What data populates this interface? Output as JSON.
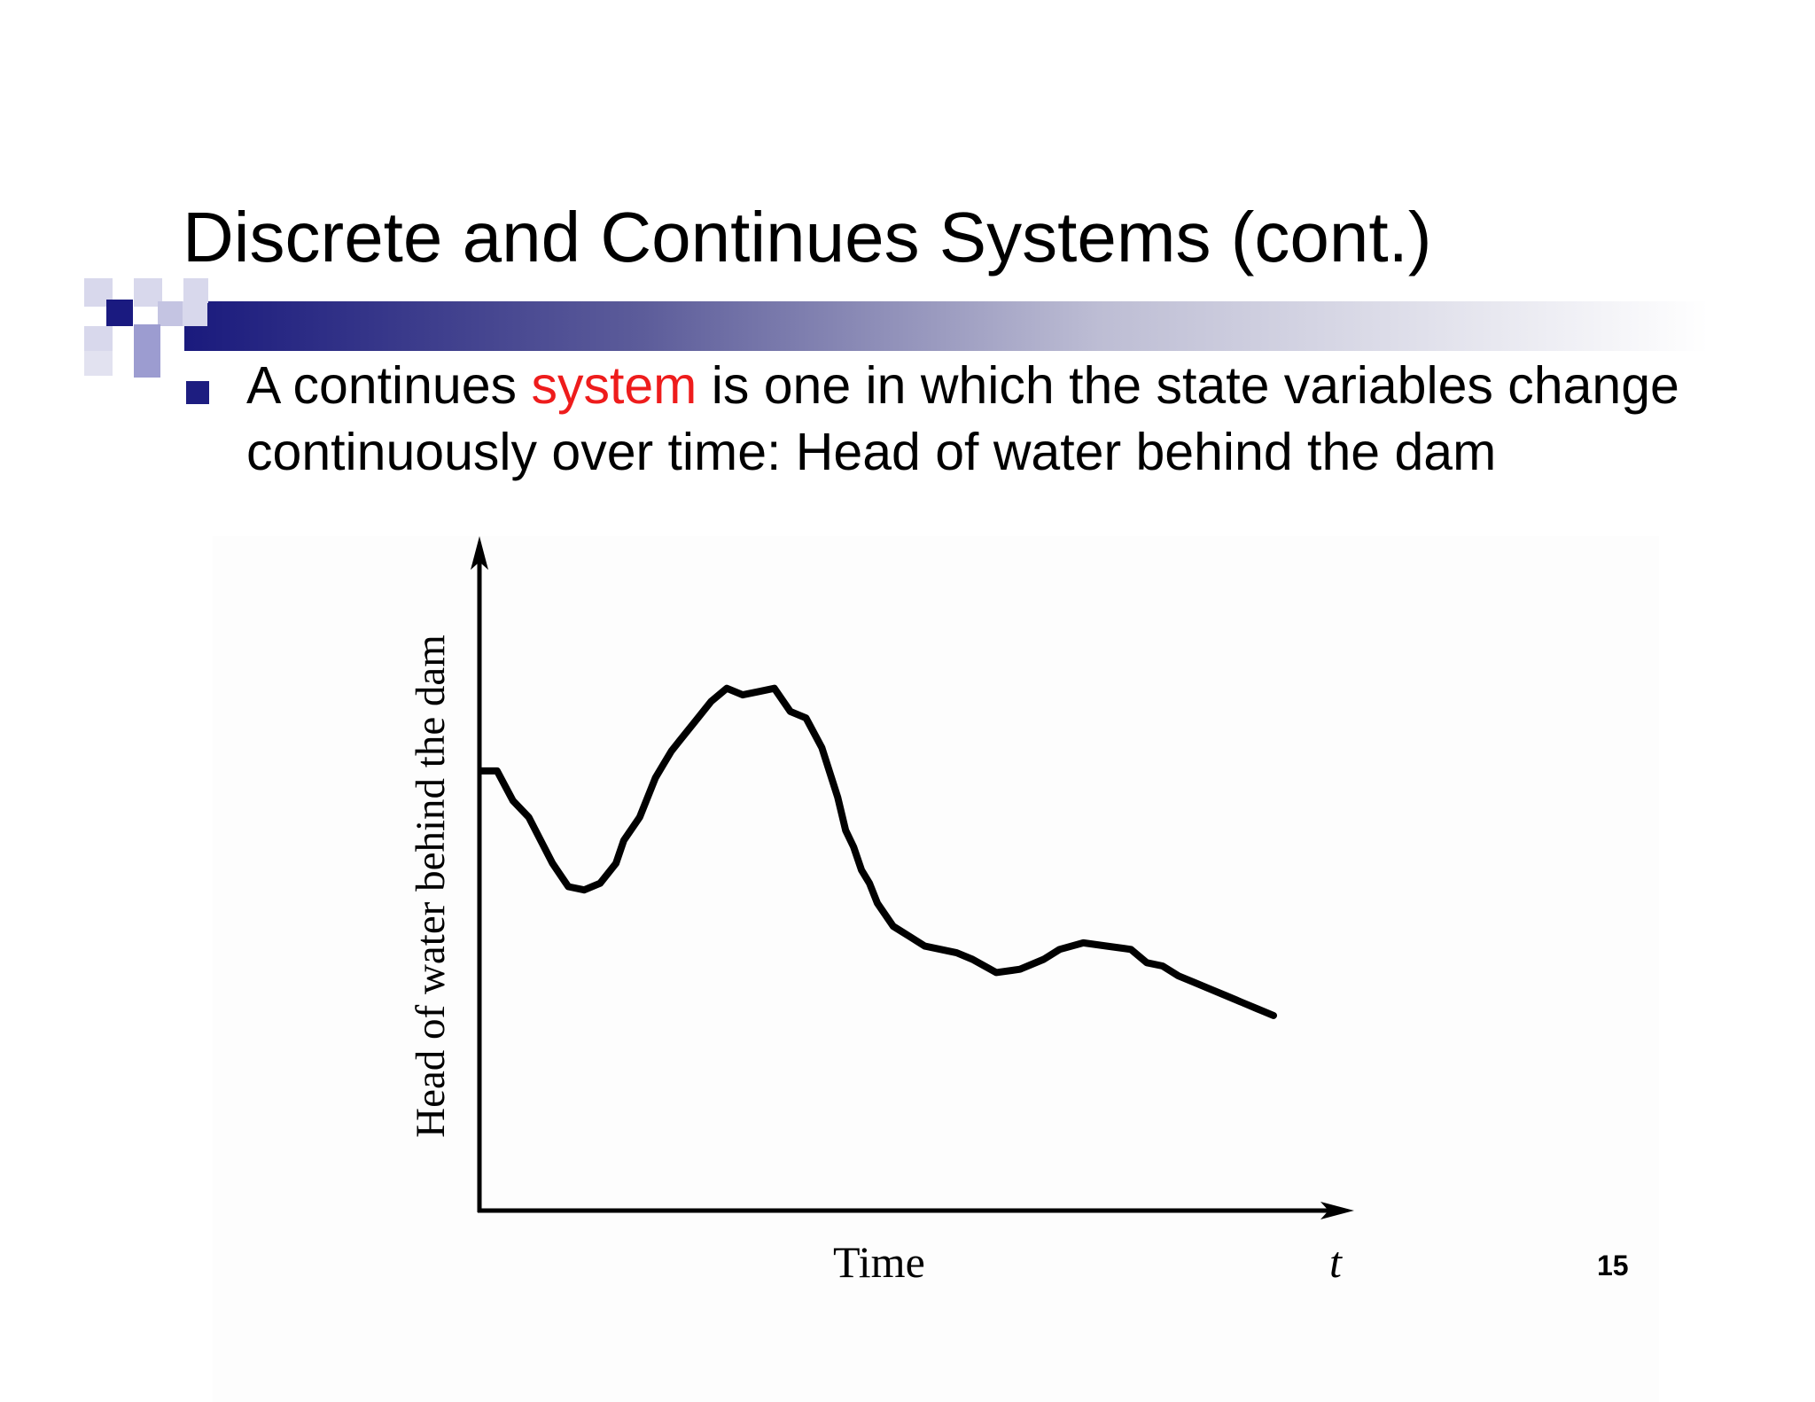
{
  "slide": {
    "title": "Discrete and Continues Systems (cont.)",
    "bullet": {
      "text_before": "A continues ",
      "highlight": "system",
      "text_after": " is one in which the state variables change continuously over time: Head of water behind the dam",
      "highlight_color": "#ee1c1c"
    },
    "page_number": "15"
  },
  "colors": {
    "accent_dark": "#1d1d80",
    "accent_mid": "#9c9cd0",
    "accent_light": "#d8d8ec"
  },
  "chart_data": {
    "type": "line",
    "title": "",
    "ylabel": "Head of water behind the dam",
    "xlabel": "Time",
    "x_axis_symbol": "t",
    "grid": false,
    "xlim": [
      0,
      100
    ],
    "ylim": [
      0,
      100
    ],
    "series": [
      {
        "x": [
          0,
          2,
          4,
          6,
          9,
          11,
          13,
          15,
          17,
          18,
          20,
          22,
          23,
          24,
          25,
          27,
          29,
          31,
          33,
          35,
          37,
          39,
          41,
          43,
          45,
          46,
          47,
          48,
          49,
          50,
          52,
          54,
          56,
          58,
          60,
          62,
          65,
          68,
          71,
          73,
          76,
          79,
          82,
          84,
          86,
          88,
          90,
          92,
          94,
          96,
          98,
          100
        ],
        "y": [
          66.5,
          66.5,
          62,
          59.5,
          52.5,
          49,
          48.5,
          49.5,
          52.5,
          56,
          59.5,
          65.5,
          67.5,
          69.5,
          71,
          74,
          77,
          79,
          78,
          78.5,
          79,
          75.5,
          74.5,
          70,
          62.5,
          57.5,
          55,
          51.5,
          49.5,
          46.5,
          43,
          41.5,
          40,
          39.5,
          39,
          38,
          36,
          36.5,
          38,
          39.5,
          40.5,
          40,
          39.5,
          37.5,
          37,
          35.5,
          34.5,
          33.5,
          32.5,
          31.5,
          30.5,
          29.5
        ]
      }
    ]
  }
}
